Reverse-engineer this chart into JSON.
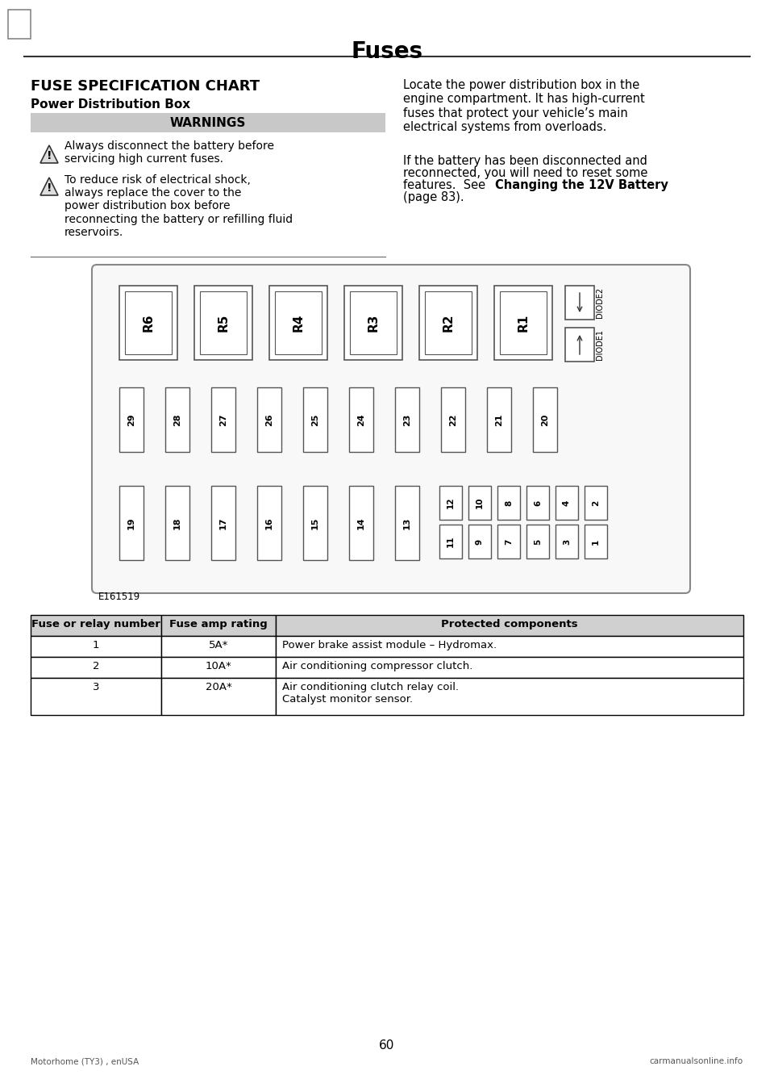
{
  "page_title": "Fuses",
  "section_title": "FUSE SPECIFICATION CHART",
  "subsection_title": "Power Distribution Box",
  "warnings_header": "WARNINGS",
  "warning1": "Always disconnect the battery before\nservicing high current fuses.",
  "warning2": "To reduce risk of electrical shock,\nalways replace the cover to the\npower distribution box before\nreconnecting the battery or refilling fluid\nreservoirs.",
  "right_text1": "Locate the power distribution box in the\nengine compartment. It has high-current\nfuses that protect your vehicle’s main\nelectrical systems from overloads.",
  "right_text2a": "If the battery has been disconnected and\nreconnected, you will need to reset some\nfeatures.  See ",
  "right_text2_bold": "Changing the 12V Battery",
  "right_text2_end": "(page 83).",
  "diagram_label": "E161519",
  "relay_row": [
    "R6",
    "R5",
    "R4",
    "R3",
    "R2",
    "R1"
  ],
  "fuse_row_middle": [
    "29",
    "28",
    "27",
    "26",
    "25",
    "24",
    "23",
    "22",
    "21",
    "20"
  ],
  "fuse_row_bottom_left": [
    "19",
    "18",
    "17",
    "16",
    "15",
    "14",
    "13"
  ],
  "fuse_row_bottom_top": [
    "12",
    "10",
    "8",
    "6",
    "4",
    "2"
  ],
  "fuse_row_bottom_bot": [
    "11",
    "9",
    "7",
    "5",
    "3",
    "1"
  ],
  "diode1_label": "DIODE1",
  "diode2_label": "DIODE2",
  "table_headers": [
    "Fuse or relay number",
    "Fuse amp rating",
    "Protected components"
  ],
  "table_rows": [
    [
      "1",
      "5A*",
      "Power brake assist module – Hydromax."
    ],
    [
      "2",
      "10A*",
      "Air conditioning compressor clutch."
    ],
    [
      "3",
      "20A*",
      "Air conditioning clutch relay coil.\nCatalyst monitor sensor."
    ]
  ],
  "page_number": "60",
  "footer_left": "Motorhome (TY3) , enUSA",
  "footer_right": "carmanualsonline.info",
  "bg_color": "#ffffff",
  "text_color": "#000000",
  "gray_header_bg": "#c8c8c8",
  "table_border_color": "#000000",
  "diagram_bg": "#f5f5f5",
  "diagram_border": "#888888"
}
